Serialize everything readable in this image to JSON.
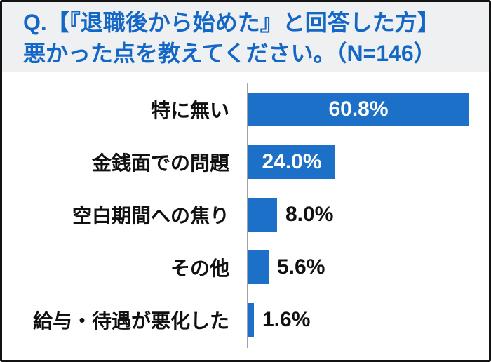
{
  "title": {
    "line1": "Q.【『退職後から始めた』と回答した方】",
    "line2": "悪かった点を教えてください。（N=146）"
  },
  "survey": {
    "sample_size_label": "N=146"
  },
  "chart_data": {
    "type": "bar",
    "orientation": "horizontal",
    "title": "Q.【『退職後から始めた』と回答した方】悪かった点を教えてください。（N=146）",
    "categories": [
      "特に無い",
      "金銭面での問題",
      "空白期間への焦り",
      "その他",
      "給与・待遇が悪化した"
    ],
    "values": [
      60.8,
      24.0,
      8.0,
      5.6,
      1.6
    ],
    "value_labels": [
      "60.8%",
      "24.0%",
      "8.0%",
      "5.6%",
      "1.6%"
    ],
    "xlabel": "",
    "ylabel": "",
    "xlim": [
      0,
      66
    ],
    "grid": false,
    "legend": false,
    "value_label_inside_threshold": 20
  },
  "colors": {
    "bar": "#1c70c8",
    "title_text": "#1567c6",
    "title_bg": "#eef0f2",
    "chart_bg": "#ffffff",
    "axis_line": "#a0a4a8",
    "category_text": "#111111",
    "value_inside": "#ffffff",
    "value_outside": "#111111",
    "frame_border": "#131313"
  }
}
